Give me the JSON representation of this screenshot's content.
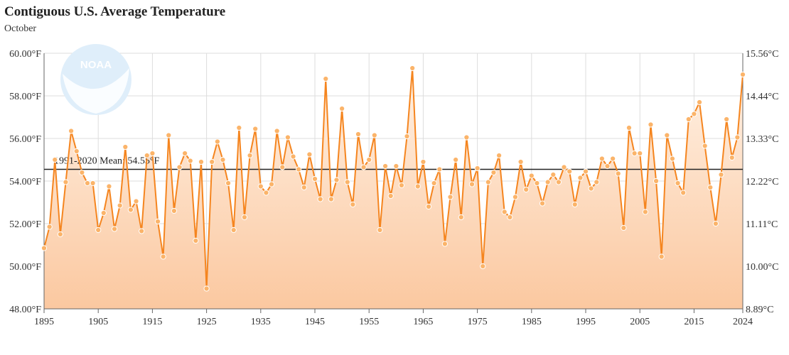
{
  "header": {
    "title": "Contiguous U.S. Average Temperature",
    "subtitle": "October"
  },
  "logo": {
    "text": "NOAA"
  },
  "chart_data": {
    "type": "line",
    "title": "Contiguous U.S. Average Temperature",
    "subtitle": "October",
    "xlim": [
      1895,
      2024
    ],
    "ylim": [
      48,
      60
    ],
    "x_ticks": [
      1895,
      1905,
      1915,
      1925,
      1935,
      1945,
      1955,
      1965,
      1975,
      1985,
      1995,
      2005,
      2015,
      2024
    ],
    "y_ticks_left": [
      {
        "value": 48,
        "label": "48.00°F"
      },
      {
        "value": 50,
        "label": "50.00°F"
      },
      {
        "value": 52,
        "label": "52.00°F"
      },
      {
        "value": 54,
        "label": "54.00°F"
      },
      {
        "value": 56,
        "label": "56.00°F"
      },
      {
        "value": 58,
        "label": "58.00°F"
      },
      {
        "value": 60,
        "label": "60.00°F"
      }
    ],
    "y_ticks_right": [
      {
        "value": 48,
        "label": "8.89°C"
      },
      {
        "value": 50,
        "label": "10.00°C"
      },
      {
        "value": 52,
        "label": "11.11°C"
      },
      {
        "value": 54,
        "label": "12.22°C"
      },
      {
        "value": 56,
        "label": "13.33°C"
      },
      {
        "value": 58,
        "label": "14.44°C"
      },
      {
        "value": 60,
        "label": "15.56°C"
      }
    ],
    "grid": true,
    "mean": {
      "value": 54.55,
      "label": "1991-2020 Mean: 54.55°F"
    },
    "colors": {
      "line": "#f5851f",
      "marker": "#fbb46a",
      "fill_top": "#fff1e4",
      "fill_bottom": "#fbc8a0",
      "mean_line": "#222222",
      "grid": "#dddddd"
    },
    "series": [
      {
        "years": [
          1895,
          1896,
          1897,
          1898,
          1899,
          1900,
          1901,
          1902,
          1903,
          1904,
          1905,
          1906,
          1907,
          1908,
          1909,
          1910,
          1911,
          1912,
          1913,
          1914,
          1915,
          1916,
          1917,
          1918,
          1919,
          1920,
          1921,
          1922,
          1923,
          1924,
          1925,
          1926,
          1927,
          1928,
          1929,
          1930,
          1931,
          1932,
          1933,
          1934,
          1935,
          1936,
          1937,
          1938,
          1939,
          1940,
          1941,
          1942,
          1943,
          1944,
          1945,
          1946,
          1947,
          1948,
          1949,
          1950,
          1951,
          1952,
          1953,
          1954,
          1955,
          1956,
          1957,
          1958,
          1959,
          1960,
          1961,
          1962,
          1963,
          1964,
          1965,
          1966,
          1967,
          1968,
          1969,
          1970,
          1971,
          1972,
          1973,
          1974,
          1975,
          1976,
          1977,
          1978,
          1979,
          1980,
          1981,
          1982,
          1983,
          1984,
          1985,
          1986,
          1987,
          1988,
          1989,
          1990,
          1991,
          1992,
          1993,
          1994,
          1995,
          1996,
          1997,
          1998,
          1999,
          2000,
          2001,
          2002,
          2003,
          2004,
          2005,
          2006,
          2007,
          2008,
          2009,
          2010,
          2011,
          2012,
          2013,
          2014,
          2015,
          2016,
          2017,
          2018,
          2019,
          2020,
          2021,
          2022,
          2023,
          2024
        ],
        "values": [
          50.85,
          51.85,
          55.0,
          51.5,
          53.95,
          56.35,
          55.4,
          54.4,
          53.9,
          53.9,
          51.7,
          52.5,
          53.75,
          51.75,
          52.85,
          55.6,
          52.65,
          53.05,
          51.65,
          55.2,
          55.3,
          52.1,
          50.45,
          56.15,
          52.6,
          54.65,
          55.3,
          54.95,
          51.2,
          54.9,
          48.95,
          54.9,
          55.85,
          55.0,
          53.9,
          51.7,
          56.5,
          52.3,
          55.2,
          56.45,
          53.75,
          53.45,
          53.85,
          56.35,
          54.65,
          56.05,
          55.15,
          54.55,
          53.7,
          55.25,
          54.1,
          53.15,
          58.8,
          53.15,
          54.05,
          57.4,
          53.95,
          52.9,
          56.2,
          54.65,
          55.0,
          56.15,
          51.7,
          54.7,
          53.3,
          54.7,
          53.8,
          56.1,
          59.3,
          53.75,
          54.9,
          52.8,
          53.9,
          54.55,
          51.05,
          53.25,
          55.0,
          52.3,
          56.05,
          53.85,
          54.6,
          50.0,
          53.95,
          54.4,
          55.2,
          52.55,
          52.3,
          53.25,
          54.9,
          53.6,
          54.25,
          53.9,
          52.95,
          53.95,
          54.3,
          53.95,
          54.65,
          54.45,
          52.9,
          54.15,
          54.45,
          53.65,
          53.95,
          55.05,
          54.7,
          55.05,
          54.35,
          51.8,
          56.5,
          55.3,
          55.3,
          52.55,
          56.65,
          54.0,
          50.45,
          56.15,
          55.05,
          53.9,
          53.45,
          56.9,
          57.15,
          57.7,
          55.65,
          53.7,
          52.0,
          54.3,
          56.9,
          55.1,
          56.05,
          59.0
        ]
      }
    ]
  }
}
